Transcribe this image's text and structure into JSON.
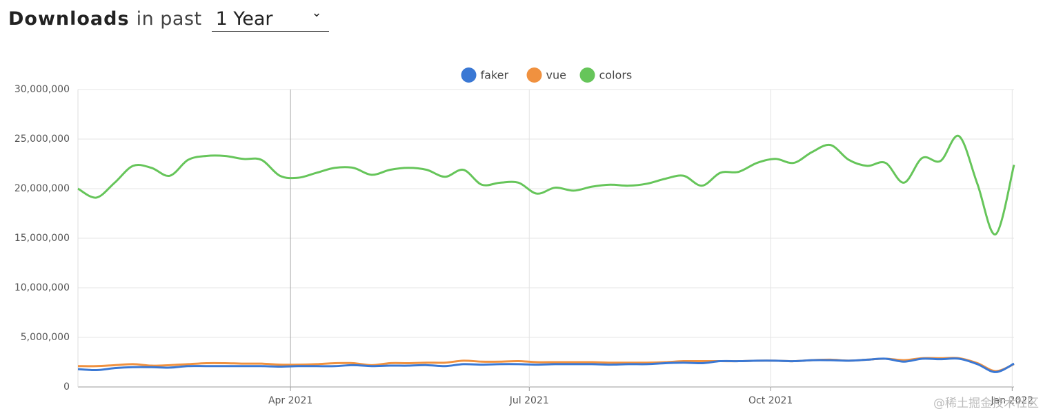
{
  "header": {
    "title": "Downloads",
    "subtitle": "in past",
    "period": "1 Year"
  },
  "watermark": "@稀土掘金技术社区",
  "chart_data": {
    "type": "line",
    "x": [
      0,
      1,
      2,
      3,
      4,
      5,
      6,
      7,
      8,
      9,
      10,
      11,
      12,
      13,
      14,
      15,
      16,
      17,
      18,
      19,
      20,
      21,
      22,
      23,
      24,
      25,
      26,
      27,
      28,
      29,
      30,
      31,
      32,
      33,
      34,
      35,
      36,
      37,
      38,
      39,
      40,
      41,
      42,
      43,
      44,
      45,
      46,
      47,
      48,
      49,
      50,
      51
    ],
    "xlim": [
      0,
      51
    ],
    "xticks": [
      {
        "value": 11.58,
        "label": "Apr 2021"
      },
      {
        "value": 24.59,
        "label": "Jul 2021"
      },
      {
        "value": 37.74,
        "label": "Oct 2021"
      },
      {
        "value": 50.9,
        "label": "Jan 2022"
      }
    ],
    "ylim": [
      0,
      30000000
    ],
    "yticks": [
      0,
      {
        "value": 5000000,
        "label": "5,000,000"
      },
      {
        "value": 10000000,
        "label": "10,000,000"
      },
      {
        "value": 15000000,
        "label": "15,000,000"
      },
      {
        "value": 20000000,
        "label": "20,000,000"
      },
      {
        "value": 25000000,
        "label": "25,000,000"
      },
      {
        "value": 30000000,
        "label": "30,000,000"
      }
    ],
    "grid": true,
    "legend": "top",
    "series": [
      {
        "name": "faker",
        "color": "#3a78d4",
        "values": [
          1800000,
          1700000,
          1900000,
          2000000,
          2000000,
          1950000,
          2100000,
          2100000,
          2100000,
          2100000,
          2100000,
          2050000,
          2100000,
          2100000,
          2100000,
          2200000,
          2100000,
          2150000,
          2150000,
          2200000,
          2100000,
          2300000,
          2250000,
          2300000,
          2300000,
          2250000,
          2300000,
          2300000,
          2300000,
          2250000,
          2300000,
          2300000,
          2400000,
          2450000,
          2400000,
          2600000,
          2600000,
          2650000,
          2650000,
          2600000,
          2700000,
          2700000,
          2650000,
          2750000,
          2850000,
          2550000,
          2850000,
          2800000,
          2850000,
          2300000,
          1500000,
          2350000
        ]
      },
      {
        "name": "vue",
        "color": "#f0913f",
        "values": [
          2100000,
          2100000,
          2200000,
          2300000,
          2150000,
          2200000,
          2300000,
          2400000,
          2400000,
          2350000,
          2350000,
          2250000,
          2250000,
          2300000,
          2400000,
          2400000,
          2200000,
          2400000,
          2400000,
          2450000,
          2450000,
          2650000,
          2550000,
          2550000,
          2600000,
          2500000,
          2500000,
          2500000,
          2500000,
          2450000,
          2450000,
          2450000,
          2500000,
          2600000,
          2600000,
          2600000,
          2600000,
          2650000,
          2650000,
          2600000,
          2700000,
          2750000,
          2650000,
          2750000,
          2850000,
          2700000,
          2900000,
          2900000,
          2900000,
          2400000,
          1600000,
          2300000
        ]
      },
      {
        "name": "colors",
        "color": "#66c55a",
        "values": [
          20000000,
          19100000,
          20600000,
          22300000,
          22100000,
          21300000,
          22900000,
          23300000,
          23300000,
          23000000,
          22900000,
          21300000,
          21100000,
          21600000,
          22100000,
          22100000,
          21400000,
          21900000,
          22100000,
          21900000,
          21200000,
          21900000,
          20400000,
          20600000,
          20600000,
          19500000,
          20100000,
          19800000,
          20200000,
          20400000,
          20300000,
          20500000,
          21000000,
          21300000,
          20300000,
          21600000,
          21700000,
          22600000,
          23000000,
          22600000,
          23700000,
          24400000,
          22900000,
          22300000,
          22600000,
          20600000,
          23100000,
          22800000,
          25300000,
          20500000,
          15400000,
          22400000
        ]
      }
    ]
  }
}
